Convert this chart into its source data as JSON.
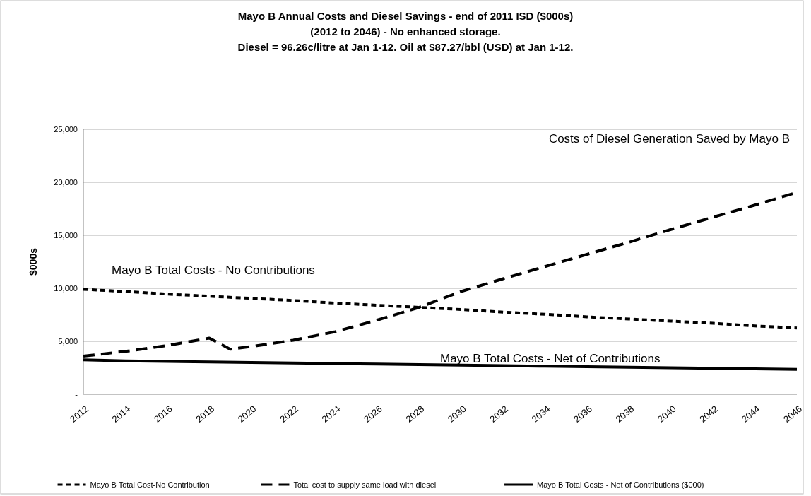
{
  "chart_data": {
    "type": "line",
    "title": "Mayo B Annual Costs and Diesel Savings - end of 2011 ISD ($000s)\n(2012 to 2046) - No enhanced storage.\nDiesel = 96.26c/litre at Jan 1-12. Oil at  $87.27/bbl (USD) at Jan 1-12.",
    "ylabel": "$000s",
    "xlim": [
      2012,
      2046
    ],
    "xticks": [
      2012,
      2014,
      2016,
      2018,
      2020,
      2022,
      2024,
      2026,
      2028,
      2030,
      2032,
      2034,
      2036,
      2038,
      2040,
      2042,
      2044,
      2046
    ],
    "ylim": [
      0,
      25000
    ],
    "yticks": [
      {
        "value": 0,
        "label": "-"
      },
      {
        "value": 5000,
        "label": "5,000"
      },
      {
        "value": 10000,
        "label": "10,000"
      },
      {
        "value": 15000,
        "label": "15,000"
      },
      {
        "value": 20000,
        "label": "20,000"
      },
      {
        "value": 25000,
        "label": "25,000"
      }
    ],
    "grid": "y",
    "legend": "bottom",
    "marker": "none",
    "series": [
      {
        "name": "Mayo B Total Cost-No Contribution",
        "color": "#000000",
        "line_style": "dotted",
        "x": [
          2012,
          2014,
          2016,
          2018,
          2020,
          2022,
          2024,
          2026,
          2028,
          2030,
          2032,
          2034,
          2036,
          2038,
          2040,
          2042,
          2044,
          2046
        ],
        "values": [
          9900,
          9700,
          9450,
          9250,
          9050,
          8850,
          8600,
          8400,
          8200,
          8000,
          7750,
          7550,
          7300,
          7100,
          6900,
          6700,
          6450,
          6250
        ]
      },
      {
        "name": "Total cost to supply same load with diesel",
        "color": "#000000",
        "line_style": "dashed",
        "x": [
          2012,
          2014,
          2016,
          2018,
          2019,
          2020,
          2022,
          2024,
          2026,
          2028,
          2030,
          2032,
          2034,
          2036,
          2038,
          2040,
          2042,
          2044,
          2046
        ],
        "values": [
          3600,
          4050,
          4600,
          5300,
          4250,
          4500,
          5100,
          5900,
          7000,
          8200,
          9700,
          10900,
          12050,
          13200,
          14350,
          15550,
          16700,
          17850,
          19050
        ]
      },
      {
        "name": "Mayo B Total Costs - Net of Contributions ($000)",
        "color": "#000000",
        "line_style": "solid",
        "x": [
          2012,
          2014,
          2016,
          2018,
          2020,
          2022,
          2024,
          2026,
          2028,
          2030,
          2032,
          2034,
          2036,
          2038,
          2040,
          2042,
          2044,
          2046
        ],
        "values": [
          3250,
          3150,
          3100,
          3050,
          3000,
          2950,
          2900,
          2850,
          2800,
          2750,
          2700,
          2650,
          2600,
          2550,
          2500,
          2450,
          2400,
          2350
        ]
      }
    ],
    "annotations": [
      "Costs of Diesel Generation Saved by Mayo B",
      "Mayo B Total Costs - No Contributions",
      {
        "text": "Mayo B Total Costs - Net of Contributions",
        "x": 2029,
        "y": 3000
      }
    ]
  }
}
